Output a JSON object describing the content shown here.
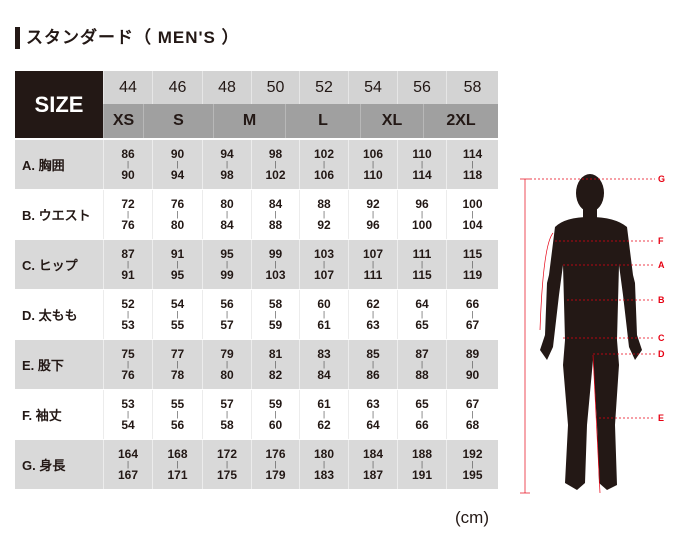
{
  "title": "スタンダード（ MEN'S ）",
  "size_label": "SIZE",
  "numeric_sizes": [
    "44",
    "46",
    "48",
    "50",
    "52",
    "54",
    "56",
    "58"
  ],
  "letter_sizes": [
    "XS",
    "S",
    "M",
    "L",
    "XL",
    "2XL"
  ],
  "rows": [
    {
      "label": "A. 胸囲",
      "values": [
        [
          "86",
          "90"
        ],
        [
          "90",
          "94"
        ],
        [
          "94",
          "98"
        ],
        [
          "98",
          "102"
        ],
        [
          "102",
          "106"
        ],
        [
          "106",
          "110"
        ],
        [
          "110",
          "114"
        ],
        [
          "114",
          "118"
        ]
      ]
    },
    {
      "label": "B. ウエスト",
      "values": [
        [
          "72",
          "76"
        ],
        [
          "76",
          "80"
        ],
        [
          "80",
          "84"
        ],
        [
          "84",
          "88"
        ],
        [
          "88",
          "92"
        ],
        [
          "92",
          "96"
        ],
        [
          "96",
          "100"
        ],
        [
          "100",
          "104"
        ]
      ]
    },
    {
      "label": "C. ヒップ",
      "values": [
        [
          "87",
          "91"
        ],
        [
          "91",
          "95"
        ],
        [
          "95",
          "99"
        ],
        [
          "99",
          "103"
        ],
        [
          "103",
          "107"
        ],
        [
          "107",
          "111"
        ],
        [
          "111",
          "115"
        ],
        [
          "115",
          "119"
        ]
      ]
    },
    {
      "label": "D. 太もも",
      "values": [
        [
          "52",
          "53"
        ],
        [
          "54",
          "55"
        ],
        [
          "56",
          "57"
        ],
        [
          "58",
          "59"
        ],
        [
          "60",
          "61"
        ],
        [
          "62",
          "63"
        ],
        [
          "64",
          "65"
        ],
        [
          "66",
          "67"
        ]
      ]
    },
    {
      "label": "E. 股下",
      "values": [
        [
          "75",
          "76"
        ],
        [
          "77",
          "78"
        ],
        [
          "79",
          "80"
        ],
        [
          "81",
          "82"
        ],
        [
          "83",
          "84"
        ],
        [
          "85",
          "86"
        ],
        [
          "87",
          "88"
        ],
        [
          "89",
          "90"
        ]
      ]
    },
    {
      "label": "F. 袖丈",
      "values": [
        [
          "53",
          "54"
        ],
        [
          "55",
          "56"
        ],
        [
          "57",
          "58"
        ],
        [
          "59",
          "60"
        ],
        [
          "61",
          "62"
        ],
        [
          "63",
          "64"
        ],
        [
          "65",
          "66"
        ],
        [
          "67",
          "68"
        ]
      ]
    },
    {
      "label": "G. 身長",
      "values": [
        [
          "164",
          "167"
        ],
        [
          "168",
          "171"
        ],
        [
          "172",
          "175"
        ],
        [
          "176",
          "179"
        ],
        [
          "180",
          "183"
        ],
        [
          "184",
          "187"
        ],
        [
          "188",
          "191"
        ],
        [
          "192",
          "195"
        ]
      ]
    }
  ],
  "unit": "(cm)",
  "figure_labels": [
    "G",
    "F",
    "A",
    "B",
    "C",
    "D",
    "E"
  ],
  "colors": {
    "dark": "#231815",
    "accent": "#e60012"
  }
}
